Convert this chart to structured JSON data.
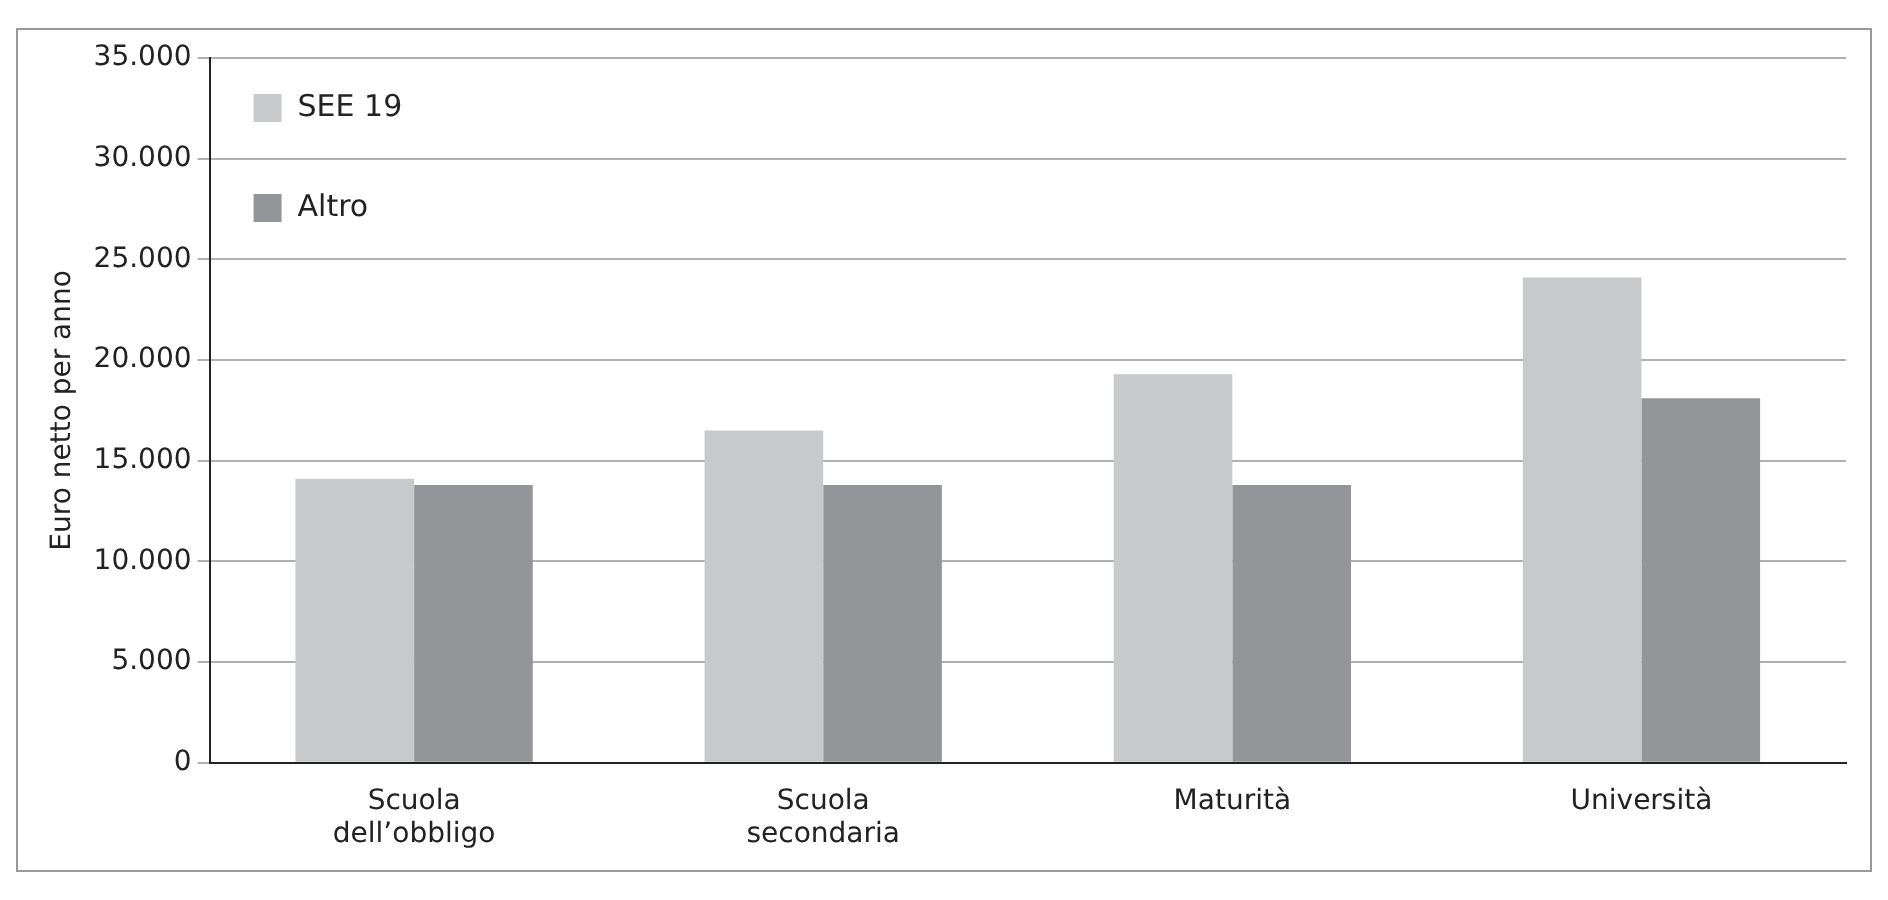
{
  "chart_data": {
    "type": "bar",
    "ylabel": "Euro netto per anno",
    "categories": [
      "Scuola\ndell’obbligo",
      "Scuola\nsecondaria",
      "Maturità",
      "Università"
    ],
    "series": [
      {
        "name": "SEE 19",
        "color": "#c8c9cb",
        "values": [
          14100,
          16500,
          19300,
          24100
        ]
      },
      {
        "name": "Altro",
        "color": "#939598",
        "values": [
          13800,
          13800,
          13800,
          18100
        ]
      }
    ],
    "ylim": [
      0,
      35000
    ],
    "yticks": [
      {
        "value": 0,
        "label": "0"
      },
      {
        "value": 5000,
        "label": "5.000"
      },
      {
        "value": 10000,
        "label": "10.000"
      },
      {
        "value": 15000,
        "label": "15.000"
      },
      {
        "value": 20000,
        "label": "20.000"
      },
      {
        "value": 25000,
        "label": "25.000"
      },
      {
        "value": 30000,
        "label": "30.000"
      },
      {
        "value": 35000,
        "label": "35.000"
      }
    ],
    "grid": "y",
    "legend": "top left"
  }
}
